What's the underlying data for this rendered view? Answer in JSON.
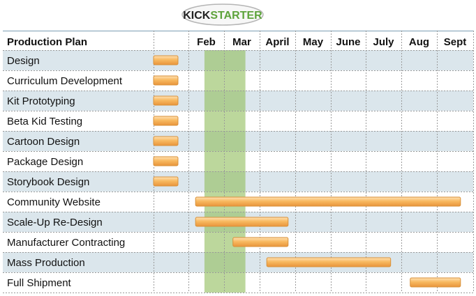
{
  "logo": {
    "text_a": "KICK",
    "text_b": "STARTER",
    "color_a": "#222222",
    "color_b": "#5da33b"
  },
  "chart_data": {
    "type": "gantt",
    "title": "Production Plan",
    "months": [
      "",
      "Feb",
      "Mar",
      "April",
      "May",
      "June",
      "July",
      "Aug",
      "Sept"
    ],
    "tasks": [
      {
        "name": "Design",
        "start": 0.0,
        "end": 0.7
      },
      {
        "name": "Curriculum Development",
        "start": 0.0,
        "end": 0.7
      },
      {
        "name": "Kit Prototyping",
        "start": 0.0,
        "end": 0.7
      },
      {
        "name": "Beta Kid Testing",
        "start": 0.0,
        "end": 0.7
      },
      {
        "name": "Cartoon Design",
        "start": 0.0,
        "end": 0.7
      },
      {
        "name": "Package Design",
        "start": 0.0,
        "end": 0.7
      },
      {
        "name": "Storybook Design",
        "start": 0.0,
        "end": 0.7
      },
      {
        "name": "Community Website",
        "start": 1.2,
        "end": 8.65
      },
      {
        "name": "Scale-Up Re-Design",
        "start": 1.2,
        "end": 3.8
      },
      {
        "name": "Manufacturer Contracting",
        "start": 2.25,
        "end": 3.8
      },
      {
        "name": "Mass Production",
        "start": 3.2,
        "end": 6.7
      },
      {
        "name": "Full Shipment",
        "start": 7.25,
        "end": 8.65
      }
    ],
    "highlight": {
      "start": 1.45,
      "end": 2.6
    },
    "colors": {
      "row_shade": "#dbe6ec",
      "highlight": "#8fbc5a",
      "bar_fill": "#f6b258",
      "bar_stroke": "#d8913a",
      "grid": "#9a9a9a"
    }
  }
}
